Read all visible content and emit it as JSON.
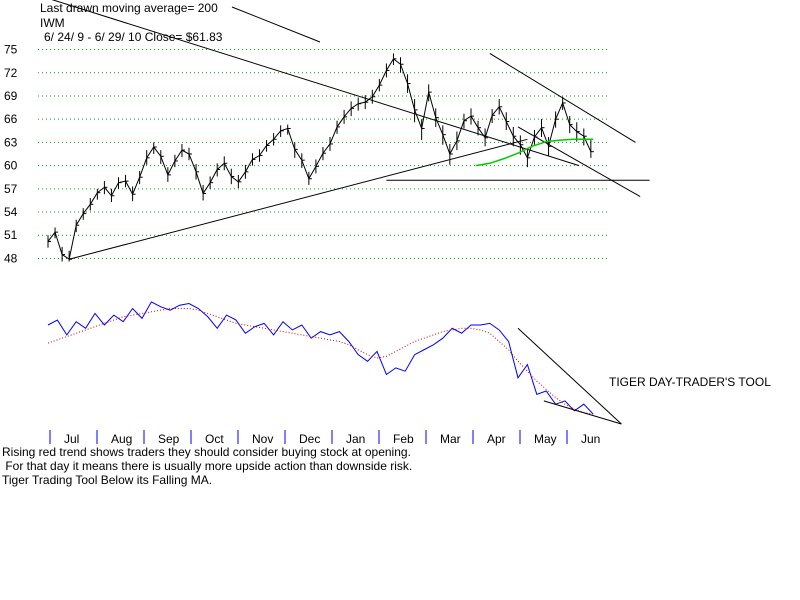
{
  "header": {
    "ma_note": "Last drawn moving average= 200",
    "ticker": "IWM",
    "range_close": "6/ 24/ 9 -  6/ 29/ 10   Close= $61.83"
  },
  "chart_data": {
    "type": "line",
    "title": "IWM",
    "price_axis": {
      "ticks": [
        75,
        72,
        69,
        66,
        63,
        60,
        57,
        54,
        51,
        48
      ],
      "tick_labels": [
        "75",
        "72",
        "69",
        "66",
        "63",
        "60",
        "57",
        "54",
        "51",
        "48"
      ],
      "ylim": [
        47.8,
        75.2
      ],
      "grid": true
    },
    "months": [
      "Jul",
      "Aug",
      "Sep",
      "Oct",
      "Nov",
      "Dec",
      "Jan",
      "Feb",
      "Mar",
      "Apr",
      "May",
      "Jun"
    ],
    "price_series": {
      "name": "IWM daily high-low bars (approx. closes)",
      "x_month_index": [
        0.0,
        0.15,
        0.3,
        0.45,
        0.6,
        0.75,
        0.9,
        1.05,
        1.2,
        1.35,
        1.5,
        1.65,
        1.8,
        1.95,
        2.1,
        2.25,
        2.4,
        2.55,
        2.7,
        2.85,
        3.0,
        3.15,
        3.3,
        3.45,
        3.6,
        3.75,
        3.9,
        4.05,
        4.2,
        4.35,
        4.5,
        4.65,
        4.8,
        4.95,
        5.1,
        5.25,
        5.4,
        5.55,
        5.7,
        5.85,
        6.0,
        6.15,
        6.3,
        6.45,
        6.6,
        6.75,
        6.9,
        7.05,
        7.2,
        7.35,
        7.5,
        7.65,
        7.8,
        7.95,
        8.1,
        8.25,
        8.4,
        8.55,
        8.7,
        8.85,
        9.0,
        9.15,
        9.3,
        9.45,
        9.6,
        9.75,
        9.9,
        10.05,
        10.2,
        10.35,
        10.5,
        10.65,
        10.8,
        10.95,
        11.1,
        11.25,
        11.4,
        11.55
      ],
      "close": [
        50.2,
        51.4,
        48.5,
        47.9,
        52.3,
        53.8,
        55.0,
        56.5,
        57.2,
        56.1,
        57.8,
        58.0,
        56.3,
        58.5,
        61.0,
        62.4,
        61.2,
        58.8,
        60.6,
        62.0,
        61.5,
        59.2,
        56.4,
        57.8,
        59.5,
        60.3,
        58.6,
        57.9,
        59.2,
        60.8,
        61.3,
        62.6,
        63.4,
        64.5,
        64.8,
        62.1,
        60.7,
        58.3,
        59.9,
        61.6,
        62.8,
        65.0,
        66.3,
        67.4,
        68.0,
        68.2,
        68.9,
        70.4,
        72.3,
        73.8,
        73.1,
        70.6,
        67.2,
        64.8,
        69.5,
        66.2,
        64.0,
        61.5,
        63.2,
        65.8,
        66.4,
        64.9,
        63.6,
        66.5,
        67.6,
        65.7,
        63.8,
        62.7,
        61.0,
        63.7,
        64.9,
        62.5,
        66.0,
        68.1,
        65.3,
        64.4,
        63.8,
        61.8
      ],
      "high": [
        51.0,
        52.0,
        49.5,
        49.0,
        53.0,
        54.5,
        55.8,
        57.0,
        58.0,
        57.0,
        58.5,
        58.8,
        57.3,
        59.3,
        62.0,
        63.0,
        62.0,
        59.8,
        61.4,
        62.8,
        62.3,
        60.2,
        57.5,
        58.6,
        60.3,
        61.2,
        59.6,
        58.8,
        60.1,
        61.6,
        62.1,
        63.3,
        64.2,
        65.2,
        65.3,
        63.0,
        61.6,
        59.2,
        60.8,
        62.4,
        63.7,
        65.8,
        67.2,
        68.3,
        68.8,
        69.1,
        69.8,
        71.2,
        73.2,
        74.5,
        74.0,
        71.8,
        68.6,
        66.0,
        70.5,
        67.4,
        65.2,
        62.8,
        64.4,
        66.7,
        67.4,
        65.8,
        64.8,
        67.3,
        68.6,
        66.9,
        65.0,
        63.9,
        62.3,
        64.6,
        66.0,
        63.7,
        67.0,
        68.9,
        66.4,
        65.6,
        64.8,
        63.3
      ],
      "low": [
        49.4,
        50.6,
        47.6,
        47.6,
        51.4,
        53.0,
        54.2,
        55.6,
        56.3,
        55.3,
        57.0,
        57.2,
        55.4,
        57.6,
        60.1,
        61.5,
        60.2,
        57.9,
        59.8,
        61.1,
        60.7,
        58.2,
        55.5,
        57.0,
        58.6,
        59.4,
        57.6,
        57.1,
        58.3,
        60.0,
        60.5,
        61.8,
        62.6,
        63.7,
        64.0,
        61.0,
        59.7,
        57.5,
        59.0,
        60.7,
        61.9,
        64.1,
        65.4,
        66.4,
        67.1,
        67.3,
        68.0,
        69.6,
        71.4,
        73.0,
        72.0,
        69.4,
        65.6,
        63.3,
        68.3,
        65.0,
        62.7,
        60.1,
        62.0,
        64.8,
        65.3,
        63.9,
        62.5,
        65.5,
        66.6,
        64.6,
        62.5,
        61.4,
        59.8,
        62.7,
        63.7,
        61.2,
        64.9,
        67.2,
        64.2,
        63.1,
        62.6,
        61.0
      ]
    },
    "ma200": {
      "name": "200-day moving average (green)",
      "x_month_index": [
        9.1,
        9.4,
        9.7,
        10.0,
        10.3,
        10.6,
        10.9,
        11.2,
        11.5,
        11.6
      ],
      "values": [
        60.0,
        60.3,
        60.9,
        61.6,
        62.5,
        63.1,
        63.3,
        63.4,
        63.4,
        63.4
      ]
    },
    "trendlines": [
      {
        "name": "rising support",
        "from": [
          0.45,
          47.9
        ],
        "to": [
          10.2,
          63.4
        ]
      },
      {
        "name": "falling resistance long",
        "from": [
          -0.2,
          82.0
        ],
        "to": [
          11.3,
          60.0
        ]
      },
      {
        "name": "falling resistance short",
        "from": [
          9.4,
          74.5
        ],
        "to": [
          12.5,
          63.0
        ]
      },
      {
        "name": "horizontal support",
        "from": [
          7.2,
          58.1
        ],
        "to": [
          12.8,
          58.1
        ]
      },
      {
        "name": "lower channel",
        "from": [
          10.0,
          65.0
        ],
        "to": [
          12.6,
          56.0
        ]
      }
    ],
    "indicator": {
      "name": "Tiger Day-Trader's Tool (blue) with falling MA (red dotted)",
      "label": "TIGER DAY-TRADER'S TOOL",
      "x_month_index": [
        0.0,
        0.2,
        0.4,
        0.6,
        0.8,
        1.0,
        1.2,
        1.4,
        1.6,
        1.8,
        2.0,
        2.2,
        2.4,
        2.6,
        2.8,
        3.0,
        3.2,
        3.4,
        3.6,
        3.8,
        4.0,
        4.2,
        4.4,
        4.6,
        4.8,
        5.0,
        5.2,
        5.4,
        5.6,
        5.8,
        6.0,
        6.2,
        6.4,
        6.6,
        6.8,
        7.0,
        7.2,
        7.4,
        7.6,
        7.8,
        8.0,
        8.2,
        8.4,
        8.6,
        8.8,
        9.0,
        9.2,
        9.4,
        9.6,
        9.8,
        10.0,
        10.2,
        10.4,
        10.6,
        10.8,
        11.0,
        11.2,
        11.4,
        11.6
      ],
      "values": [
        60,
        63,
        54,
        62,
        58,
        67,
        60,
        66,
        62,
        70,
        64,
        74,
        71,
        69,
        72,
        73,
        70,
        65,
        58,
        66,
        63,
        55,
        59,
        61,
        54,
        62,
        57,
        60,
        52,
        56,
        54,
        56,
        50,
        42,
        38,
        44,
        30,
        34,
        32,
        42,
        45,
        48,
        52,
        58,
        55,
        60,
        60,
        61,
        57,
        50,
        28,
        36,
        18,
        20,
        12,
        14,
        8,
        12,
        6
      ],
      "ma_values": [
        49,
        51,
        53,
        55,
        57,
        59,
        61,
        63,
        65,
        66,
        67,
        68,
        69,
        70,
        70,
        70,
        69,
        67,
        65,
        63,
        61,
        60,
        59,
        58,
        57,
        56,
        55,
        54,
        53,
        52,
        51,
        50,
        48,
        45,
        42,
        40,
        41,
        44,
        47,
        50,
        52,
        54,
        56,
        57,
        58,
        58,
        57,
        55,
        50,
        45,
        38,
        32,
        26,
        21,
        16,
        12,
        9,
        7,
        6
      ],
      "ylim": [
        0,
        80
      ]
    },
    "notes": [
      "Rising red trend shows traders they should consider buying stock at opening.",
      " For that day it means there is usually more upside action than downside risk.",
      "Tiger Trading Tool Below its Falling MA."
    ]
  }
}
